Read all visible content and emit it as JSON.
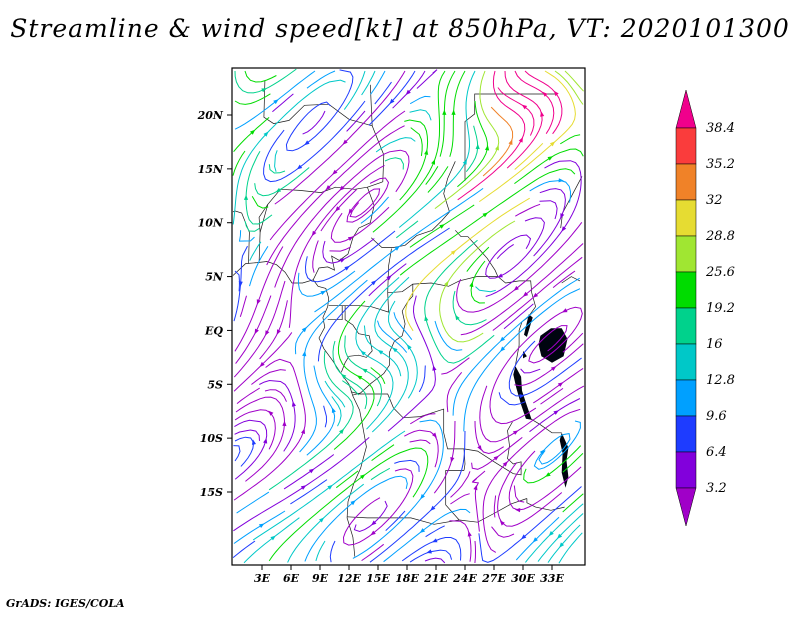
{
  "title": "Streamline & wind speed[kt] at 850hPa, VT: 2020101300",
  "attribution": "GrADS: IGES/COLA",
  "chart_data": {
    "type": "streamline",
    "title": "Streamline & wind speed[kt] at 850hPa, VT: 2020101300",
    "field": "wind speed",
    "units": "kt",
    "level": "850hPa",
    "valid_time": "2020101300",
    "x_tick_labels": [
      "3E",
      "6E",
      "9E",
      "12E",
      "15E",
      "18E",
      "21E",
      "24E",
      "27E",
      "30E",
      "33E"
    ],
    "x_tick_lons": [
      3,
      6,
      9,
      12,
      15,
      18,
      21,
      24,
      27,
      30,
      33
    ],
    "y_tick_labels": [
      "20N",
      "15N",
      "10N",
      "5N",
      "EQ",
      "5S",
      "10S",
      "15S"
    ],
    "y_tick_lats": [
      20,
      15,
      10,
      5,
      0,
      -5,
      -10,
      -15
    ],
    "lon_range": [
      -0.1,
      36.4
    ],
    "lat_range": [
      -21.8,
      24.4
    ],
    "grid": false,
    "colorbar": {
      "position": "right",
      "labels_top_to_bottom": [
        "38.4",
        "35.2",
        "32",
        "28.8",
        "25.6",
        "19.2",
        "16",
        "12.8",
        "9.6",
        "6.4",
        "3.2"
      ],
      "colors_low_to_high": [
        "#a000c8",
        "#8200dc",
        "#1e3cff",
        "#00a0ff",
        "#00c8c8",
        "#00d28c",
        "#00dc00",
        "#a0e632",
        "#e6dc32",
        "#f08228",
        "#fa3c3c",
        "#f0008c"
      ]
    }
  }
}
